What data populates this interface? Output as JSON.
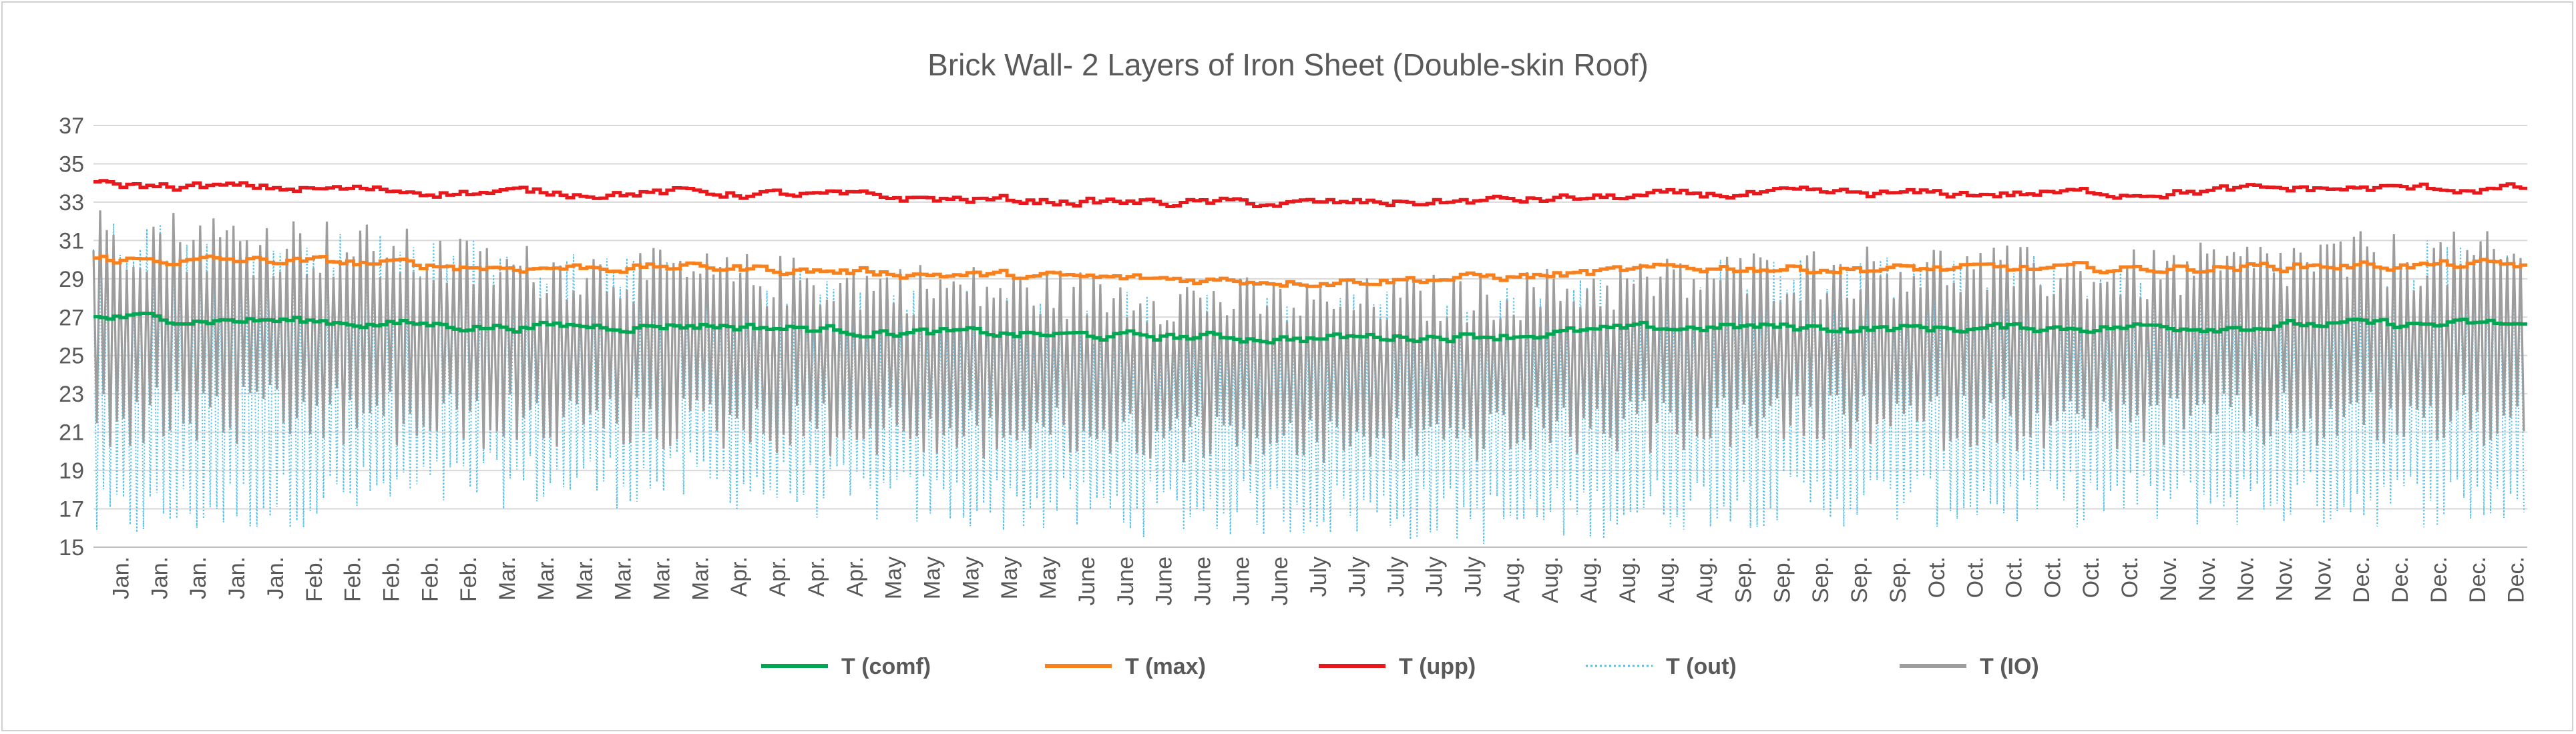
{
  "chart_data": {
    "type": "line",
    "title": "Brick Wall-   2 Layers of Iron Sheet (Double-skin Roof)",
    "xlabel": "",
    "ylabel": "",
    "ylim": [
      15,
      37
    ],
    "yticks": [
      15,
      17,
      19,
      21,
      23,
      25,
      27,
      29,
      31,
      33,
      35,
      37
    ],
    "grid": true,
    "legend_position": "bottom",
    "x_tick_labels": [
      "Jan.",
      "Jan.",
      "Jan.",
      "Jan.",
      "Jan.",
      "Feb.",
      "Feb.",
      "Feb.",
      "Feb.",
      "Feb.",
      "Mar.",
      "Mar.",
      "Mar.",
      "Mar.",
      "Mar.",
      "Mar.",
      "Apr.",
      "Apr.",
      "Apr.",
      "Apr.",
      "May",
      "May",
      "May",
      "May",
      "May",
      "June",
      "June",
      "June",
      "June",
      "June",
      "June",
      "July",
      "July",
      "July",
      "July",
      "July",
      "Aug.",
      "Aug.",
      "Aug.",
      "Aug.",
      "Aug.",
      "Aug.",
      "Sep.",
      "Sep.",
      "Sep.",
      "Sep.",
      "Sep.",
      "Oct.",
      "Oct.",
      "Oct.",
      "Oct.",
      "Oct.",
      "Oct.",
      "Nov.",
      "Nov.",
      "Nov.",
      "Nov.",
      "Nov.",
      "Dec.",
      "Dec.",
      "Dec.",
      "Dec.",
      "Dec."
    ],
    "months": [
      "Jan.",
      "Feb.",
      "Mar.",
      "Apr.",
      "May",
      "June",
      "July",
      "Aug.",
      "Sep.",
      "Oct.",
      "Nov.",
      "Dec."
    ],
    "series": [
      {
        "name": "T (comf)",
        "color": "#00a651",
        "style": "solid",
        "monthly_mean": [
          27.0,
          26.8,
          26.5,
          26.6,
          26.2,
          26.0,
          25.9,
          26.1,
          26.5,
          26.4,
          26.5,
          26.6
        ]
      },
      {
        "name": "T (max)",
        "color": "#f7811e",
        "style": "solid",
        "monthly_mean": [
          30.0,
          29.9,
          29.6,
          29.6,
          29.3,
          29.0,
          28.9,
          29.1,
          29.6,
          29.5,
          29.5,
          29.7
        ]
      },
      {
        "name": "T (upp)",
        "color": "#e8191c",
        "style": "solid",
        "monthly_mean": [
          33.9,
          33.7,
          33.5,
          33.5,
          33.2,
          33.0,
          32.9,
          33.1,
          33.4,
          33.4,
          33.5,
          33.7
        ]
      },
      {
        "name": "T (out)",
        "color": "#4fc1e9",
        "style": "dotted",
        "monthly_range": [
          [
            15,
            33.5
          ],
          [
            16,
            32.5
          ],
          [
            17,
            32
          ],
          [
            17,
            31
          ],
          [
            16,
            30
          ],
          [
            15.5,
            29.5
          ],
          [
            15.5,
            29
          ],
          [
            15,
            30
          ],
          [
            16,
            31
          ],
          [
            16,
            31.5
          ],
          [
            16,
            31
          ],
          [
            16,
            32
          ]
        ]
      },
      {
        "name": "T (IO)",
        "color": "#9d9d9d",
        "style": "solid",
        "monthly_range": [
          [
            20,
            33
          ],
          [
            20,
            32.5
          ],
          [
            20,
            31
          ],
          [
            20,
            30.5
          ],
          [
            19.5,
            30
          ],
          [
            19.5,
            29.5
          ],
          [
            19,
            29
          ],
          [
            19.5,
            29.5
          ],
          [
            20,
            30.5
          ],
          [
            20,
            31
          ],
          [
            20,
            30.5
          ],
          [
            20,
            31.5
          ]
        ]
      }
    ]
  }
}
